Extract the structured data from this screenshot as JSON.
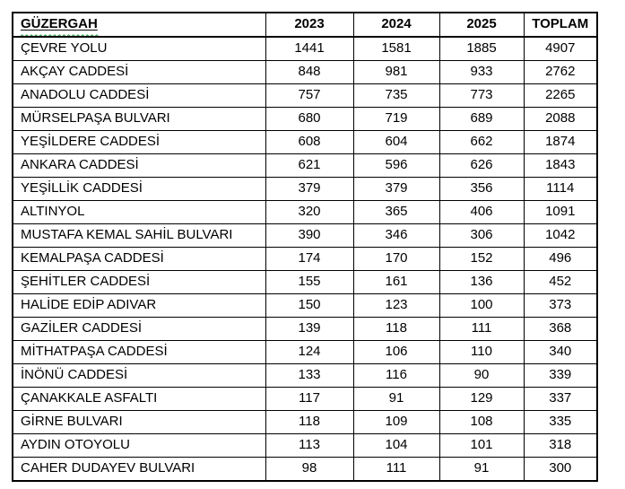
{
  "table": {
    "columns": [
      "GÜZERGAH",
      "2023",
      "2024",
      "2025",
      "TOPLAM"
    ],
    "rows": [
      [
        "ÇEVRE YOLU",
        "1441",
        "1581",
        "1885",
        "4907"
      ],
      [
        "AKÇAY CADDESİ",
        "848",
        "981",
        "933",
        "2762"
      ],
      [
        "ANADOLU CADDESİ",
        "757",
        "735",
        "773",
        "2265"
      ],
      [
        "MÜRSELPAŞA BULVARI",
        "680",
        "719",
        "689",
        "2088"
      ],
      [
        "YEŞİLDERE CADDESİ",
        "608",
        "604",
        "662",
        "1874"
      ],
      [
        "ANKARA CADDESİ",
        "621",
        "596",
        "626",
        "1843"
      ],
      [
        "YEŞİLLİK CADDESİ",
        "379",
        "379",
        "356",
        "1114"
      ],
      [
        "ALTINYOL",
        "320",
        "365",
        "406",
        "1091"
      ],
      [
        "MUSTAFA KEMAL SAHİL BULVARI",
        "390",
        "346",
        "306",
        "1042"
      ],
      [
        "KEMALPAŞA CADDESİ",
        "174",
        "170",
        "152",
        "496"
      ],
      [
        "ŞEHİTLER CADDESİ",
        "155",
        "161",
        "136",
        "452"
      ],
      [
        "HALİDE EDİP ADIVAR",
        "150",
        "123",
        "100",
        "373"
      ],
      [
        "GAZİLER CADDESİ",
        "139",
        "118",
        "111",
        "368"
      ],
      [
        "MİTHATPAŞA CADDESİ",
        "124",
        "106",
        "110",
        "340"
      ],
      [
        "İNÖNÜ CADDESİ",
        "133",
        "116",
        "90",
        "339"
      ],
      [
        "ÇANAKKALE ASFALTI",
        "117",
        "91",
        "129",
        "337"
      ],
      [
        "GİRNE BULVARI",
        "118",
        "109",
        "108",
        "335"
      ],
      [
        "AYDIN OTOYOLU",
        "113",
        "104",
        "101",
        "318"
      ],
      [
        "CAHER DUDAYEV BULVARI",
        "98",
        "111",
        "91",
        "300"
      ]
    ]
  },
  "colors": {
    "border": "#000000",
    "text": "#000000",
    "background": "#ffffff",
    "spellcheck_squiggle": "#2e9e44"
  }
}
